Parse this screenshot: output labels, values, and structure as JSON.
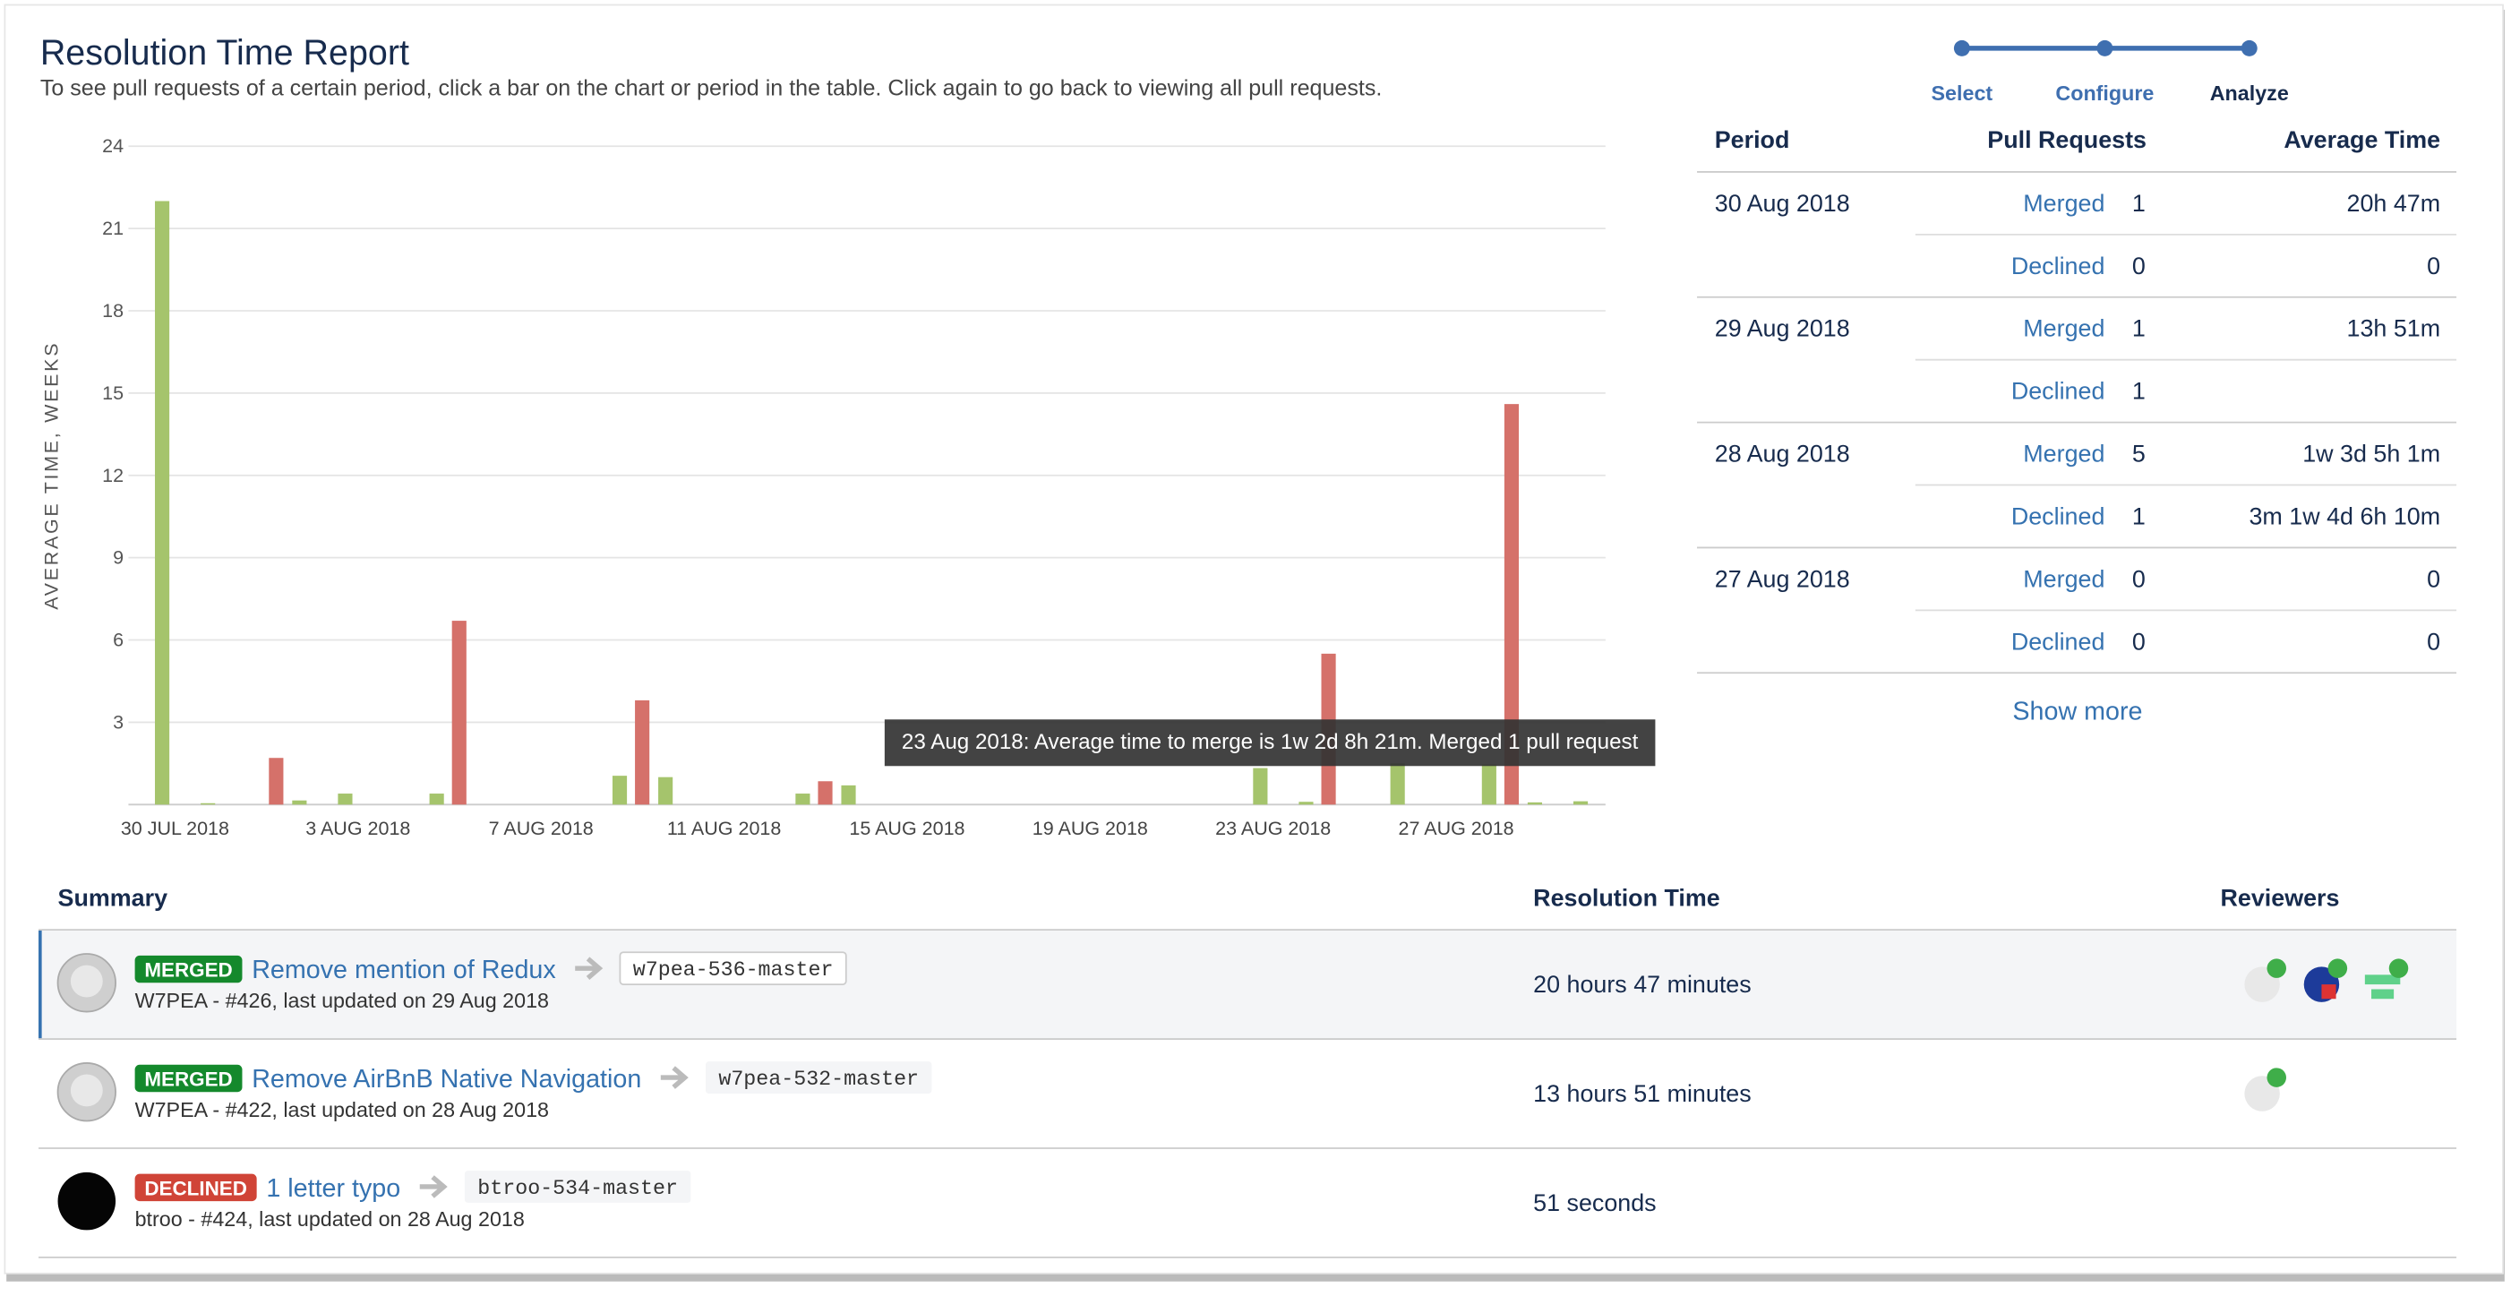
{
  "header": {
    "title": "Resolution Time Report",
    "subtitle": "To see pull requests of a certain period, click a bar on the chart or period in the table. Click again to go back to viewing all pull requests."
  },
  "wizard": {
    "steps": [
      "Select",
      "Configure",
      "Analyze"
    ]
  },
  "chart_data": {
    "type": "bar",
    "y_label": "AVERAGE TIME, WEEKS",
    "categories": [
      "30 JUL 2018",
      null,
      null,
      null,
      "3 AUG 2018",
      null,
      null,
      null,
      "7 AUG 2018",
      null,
      null,
      null,
      "11 AUG 2018",
      null,
      null,
      null,
      "15 AUG 2018",
      null,
      null,
      null,
      "19 AUG 2018",
      null,
      null,
      null,
      "23 AUG 2018",
      null,
      null,
      null,
      "27 AUG 2018",
      null,
      null,
      null
    ],
    "series": [
      {
        "color": "#a5c46c",
        "values": [
          22,
          0.05,
          null,
          0.15,
          0.4,
          null,
          0.4,
          null,
          null,
          null,
          1.05,
          1.0,
          null,
          null,
          0.4,
          0.7,
          null,
          null,
          null,
          null,
          null,
          null,
          null,
          null,
          1.33,
          0.1,
          null,
          1.5,
          null,
          1.46,
          0.08,
          0.12
        ]
      },
      {
        "color": "#d5716a",
        "values": [
          null,
          null,
          1.7,
          null,
          null,
          null,
          6.7,
          null,
          null,
          null,
          3.8,
          null,
          null,
          null,
          0.85,
          null,
          null,
          null,
          null,
          null,
          null,
          null,
          null,
          null,
          null,
          5.5,
          null,
          null,
          null,
          14.6,
          null,
          null
        ]
      }
    ],
    "ylim": [
      0,
      24
    ],
    "yticks": [
      3,
      6,
      9,
      12,
      15,
      18,
      21,
      24
    ],
    "grid": true,
    "tooltip": "23 Aug 2018: Average time to merge is 1w 2d 8h 21m. Merged 1 pull request"
  },
  "period_table": {
    "headers": [
      "Period",
      "Pull Requests",
      "Average Time"
    ],
    "groups": [
      {
        "period": "30 Aug 2018",
        "rows": [
          {
            "label": "Merged",
            "count": 1,
            "time": "20h 47m"
          },
          {
            "label": "Declined",
            "count": 0,
            "time": "0"
          }
        ]
      },
      {
        "period": "29 Aug 2018",
        "rows": [
          {
            "label": "Merged",
            "count": 1,
            "time": "13h 51m"
          },
          {
            "label": "Declined",
            "count": 1
          }
        ]
      },
      {
        "period": "28 Aug 2018",
        "rows": [
          {
            "label": "Merged",
            "count": 5,
            "time": "1w 3d 5h 1m"
          },
          {
            "label": "Declined",
            "count": 1,
            "time": "3m 1w 4d 6h 10m"
          }
        ]
      },
      {
        "period": "27 Aug 2018",
        "rows": [
          {
            "label": "Merged",
            "count": 0,
            "time": "0"
          },
          {
            "label": "Declined",
            "count": 0,
            "time": "0"
          }
        ]
      }
    ],
    "show_more": "Show more"
  },
  "pr_table": {
    "headers": [
      "Summary",
      "Resolution Time",
      "Reviewers"
    ],
    "rows": [
      {
        "status": "MERGED",
        "title": "Remove mention of Redux",
        "branch": "w7pea-536-master",
        "meta": "W7PEA - #426, last updated on 29 Aug 2018",
        "time": "20 hours 47 minutes"
      },
      {
        "status": "MERGED",
        "title": "Remove AirBnB Native Navigation",
        "branch": "w7pea-532-master",
        "meta": "W7PEA - #422, last updated on 28 Aug 2018",
        "time": "13 hours 51 minutes"
      },
      {
        "status": "DECLINED",
        "title": "1 letter typo",
        "branch": "btroo-534-master",
        "meta": "btroo - #424, last updated on 28 Aug 2018",
        "time": "51 seconds"
      }
    ]
  }
}
